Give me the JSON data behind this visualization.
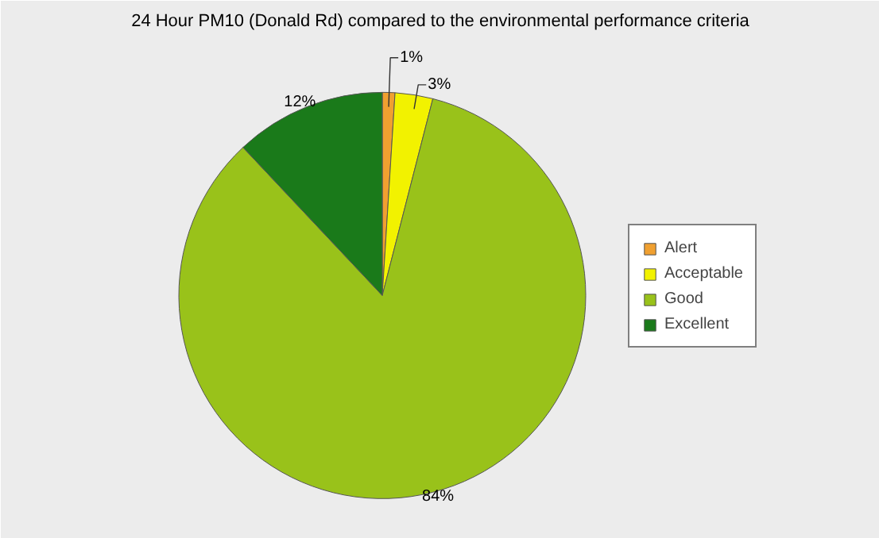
{
  "chart_data": {
    "type": "pie",
    "title": "24 Hour PM10 (Donald Rd) compared to the environmental performance criteria",
    "categories": [
      "Alert",
      "Acceptable",
      "Good",
      "Excellent"
    ],
    "values": [
      1,
      3,
      84,
      12
    ],
    "colors": [
      "#f0a030",
      "#f2f200",
      "#99c21a",
      "#1a7a1a"
    ],
    "value_labels": [
      "1%",
      "3%",
      "84%",
      "12%"
    ],
    "legend": "right"
  }
}
